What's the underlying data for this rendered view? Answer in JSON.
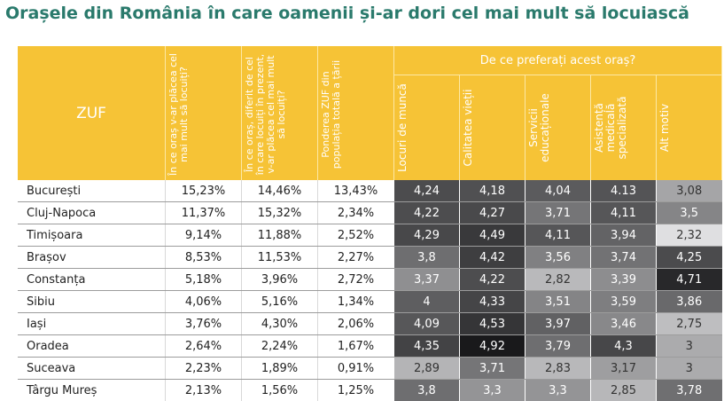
{
  "title": "Orașele din România în care oamenii și-ar dori cel mai mult să locuiască",
  "colors": {
    "header": "#f6c336",
    "title": "#2a7a6c"
  },
  "chart_data": {
    "type": "table",
    "corner_label": "ZUF",
    "columns": [
      "În ce oraș v-ar plăcea cel mai mult să locuiți?",
      "În ce oraș, diferit de cel în care locuiți în prezent, v-ar plăcea cel mai mult să locuiți?",
      "Ponderea ZUF din populația totală a țării"
    ],
    "group_label": "De ce preferați acest oraș?",
    "reasons": [
      "Locuri de muncă",
      "Calitatea vieții",
      "Servicii educaționale",
      "Asistență medicală specializată",
      "Alt motiv"
    ],
    "rows": [
      {
        "city": "București",
        "pct": [
          "15,23%",
          "14,46%",
          "13,43%"
        ],
        "scores": [
          "4,24",
          "4,18",
          "4,04",
          "4.13",
          "3,08"
        ]
      },
      {
        "city": "Cluj-Napoca",
        "pct": [
          "11,37%",
          "15,32%",
          "2,34%"
        ],
        "scores": [
          "4,22",
          "4,27",
          "3,71",
          "4,11",
          "3,5"
        ]
      },
      {
        "city": "Timișoara",
        "pct": [
          "9,14%",
          "11,88%",
          "2,52%"
        ],
        "scores": [
          "4,29",
          "4,49",
          "4,11",
          "3,94",
          "2,32"
        ]
      },
      {
        "city": "Brașov",
        "pct": [
          "8,53%",
          "11,53%",
          "2,27%"
        ],
        "scores": [
          "3,8",
          "4,42",
          "3,56",
          "3,74",
          "4,25"
        ]
      },
      {
        "city": "Constanța",
        "pct": [
          "5,18%",
          "3,96%",
          "2,72%"
        ],
        "scores": [
          "3,37",
          "4,22",
          "2,82",
          "3,39",
          "4,71"
        ]
      },
      {
        "city": "Sibiu",
        "pct": [
          "4,06%",
          "5,16%",
          "1,34%"
        ],
        "scores": [
          "4",
          "4,33",
          "3,51",
          "3,59",
          "3,86"
        ]
      },
      {
        "city": "Iași",
        "pct": [
          "3,76%",
          "4,30%",
          "2,06%"
        ],
        "scores": [
          "4,09",
          "4,53",
          "3,97",
          "3,46",
          "2,75"
        ]
      },
      {
        "city": "Oradea",
        "pct": [
          "2,64%",
          "2,24%",
          "1,67%"
        ],
        "scores": [
          "4,35",
          "4,92",
          "3,79",
          "4,3",
          "3"
        ]
      },
      {
        "city": "Suceava",
        "pct": [
          "2,23%",
          "1,89%",
          "0,91%"
        ],
        "scores": [
          "2,89",
          "3,71",
          "2,83",
          "3,17",
          "3"
        ]
      },
      {
        "city": "Târgu Mureș",
        "pct": [
          "2,13%",
          "1,56%",
          "1,25%"
        ],
        "scores": [
          "3,8",
          "3,3",
          "3,3",
          "2,85",
          "3,78"
        ]
      }
    ]
  }
}
